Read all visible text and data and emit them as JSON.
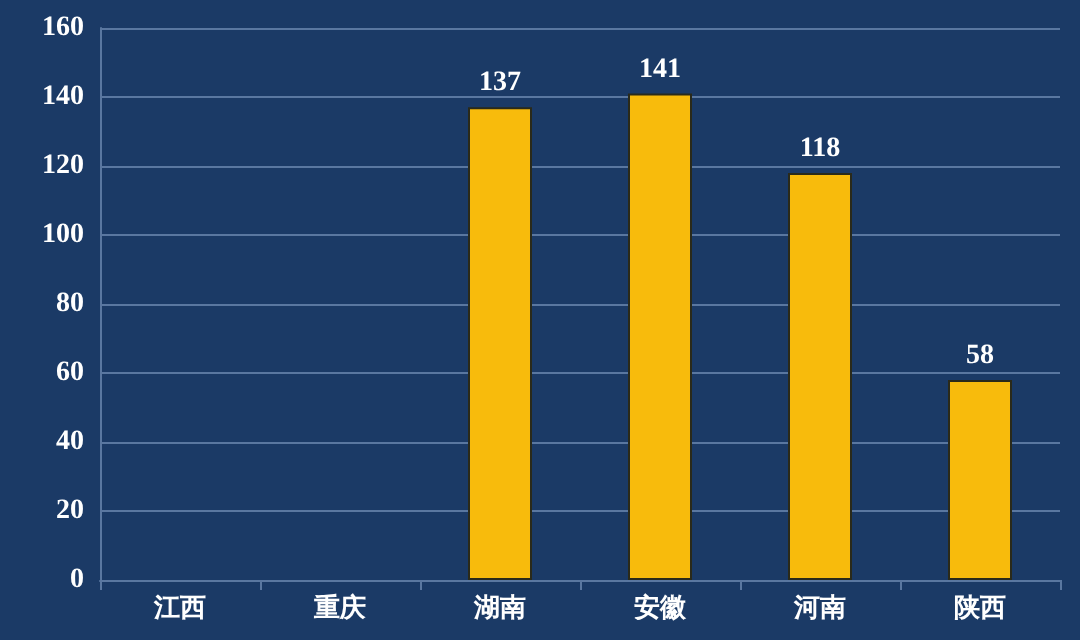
{
  "chart_data": {
    "type": "bar",
    "categories": [
      "江西",
      "重庆",
      "湖南",
      "安徽",
      "河南",
      "陕西"
    ],
    "values": [
      null,
      null,
      137,
      141,
      118,
      58
    ],
    "value_labels": [
      null,
      null,
      "137",
      "141",
      "118",
      "58"
    ],
    "color": "#f8bb0c",
    "ylim": [
      0,
      160
    ],
    "yticks": [
      0,
      20,
      40,
      60,
      80,
      100,
      120,
      140,
      160
    ],
    "grid": "y"
  }
}
